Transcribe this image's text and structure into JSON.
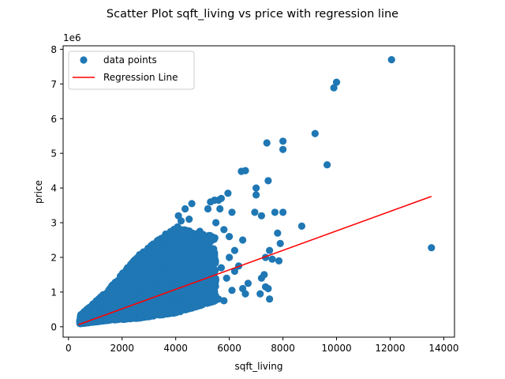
{
  "chart_data": {
    "type": "scatter",
    "title": "Scatter Plot sqft_living vs price with regression line",
    "xlabel": "sqft_living",
    "ylabel": "price",
    "y_offset_text": "1e6",
    "xlim": [
      -200,
      14400
    ],
    "ylim": [
      -0.3,
      8.1
    ],
    "y_scale_multiplier": 1000000,
    "x_ticks": [
      0,
      2000,
      4000,
      6000,
      8000,
      10000,
      12000,
      14000
    ],
    "x_tick_labels": [
      "0",
      "2000",
      "4000",
      "6000",
      "8000",
      "10000",
      "12000",
      "14000"
    ],
    "y_ticks": [
      0,
      1,
      2,
      3,
      4,
      5,
      6,
      7,
      8
    ],
    "y_tick_labels": [
      "0",
      "1",
      "2",
      "3",
      "4",
      "5",
      "6",
      "7",
      "8"
    ],
    "grid": false,
    "legend_position": "top-left",
    "series": [
      {
        "name": "data points",
        "kind": "scatter",
        "color": "#1f77b4",
        "points": [
          [
            12050,
            7.7
          ],
          [
            10000,
            7.05
          ],
          [
            9900,
            6.89
          ],
          [
            9200,
            5.57
          ],
          [
            8000,
            5.35
          ],
          [
            7400,
            5.3
          ],
          [
            8000,
            5.11
          ],
          [
            6600,
            4.5
          ],
          [
            6450,
            4.48
          ],
          [
            9650,
            4.67
          ],
          [
            7450,
            4.21
          ],
          [
            7000,
            4.0
          ],
          [
            7000,
            3.8
          ],
          [
            5950,
            3.85
          ],
          [
            5700,
            3.7
          ],
          [
            5600,
            3.65
          ],
          [
            5450,
            3.65
          ],
          [
            5300,
            3.6
          ],
          [
            5200,
            3.4
          ],
          [
            5650,
            3.4
          ],
          [
            6100,
            3.3
          ],
          [
            6950,
            3.3
          ],
          [
            7700,
            3.3
          ],
          [
            8000,
            3.3
          ],
          [
            7200,
            3.2
          ],
          [
            8700,
            2.9
          ],
          [
            7800,
            2.7
          ],
          [
            7900,
            2.4
          ],
          [
            13540,
            2.28
          ],
          [
            7500,
            2.2
          ],
          [
            7350,
            2.0
          ],
          [
            7600,
            1.95
          ],
          [
            7850,
            1.9
          ],
          [
            7300,
            1.5
          ],
          [
            7200,
            1.4
          ],
          [
            7350,
            1.15
          ],
          [
            7450,
            1.1
          ],
          [
            7150,
            0.95
          ],
          [
            7500,
            0.8
          ],
          [
            6600,
            0.95
          ],
          [
            6500,
            1.1
          ],
          [
            6200,
            1.6
          ],
          [
            6700,
            1.25
          ],
          [
            6350,
            1.75
          ],
          [
            6000,
            2.0
          ],
          [
            6200,
            2.2
          ],
          [
            6500,
            2.5
          ],
          [
            6000,
            2.6
          ],
          [
            5800,
            2.8
          ],
          [
            5500,
            3.0
          ],
          [
            4500,
            3.1
          ],
          [
            4100,
            3.2
          ],
          [
            4600,
            3.55
          ],
          [
            4350,
            3.4
          ],
          [
            4200,
            3.05
          ],
          [
            4900,
            2.75
          ],
          [
            5200,
            2.45
          ],
          [
            5450,
            2.05
          ],
          [
            5700,
            1.7
          ],
          [
            5900,
            1.4
          ],
          [
            6100,
            1.05
          ],
          [
            5800,
            0.75
          ],
          [
            5600,
            0.8
          ],
          [
            5300,
            1.1
          ]
        ],
        "dense_bands": [
          {
            "x_min": 420,
            "x_max": 1400,
            "y_low_at_min": 0.09,
            "y_low_at_max": 0.18,
            "y_high_at_min": 0.32,
            "y_high_at_max": 1.0
          },
          {
            "x_min": 1400,
            "x_max": 2600,
            "y_low_at_min": 0.18,
            "y_low_at_max": 0.25,
            "y_high_at_min": 1.0,
            "y_high_at_max": 2.05
          },
          {
            "x_min": 2600,
            "x_max": 4000,
            "y_low_at_min": 0.25,
            "y_low_at_max": 0.4,
            "y_high_at_min": 2.05,
            "y_high_at_max": 2.9
          },
          {
            "x_min": 4000,
            "x_max": 5500,
            "y_low_at_min": 0.4,
            "y_low_at_max": 0.75,
            "y_high_at_min": 2.9,
            "y_high_at_max": 2.6
          }
        ]
      },
      {
        "name": "Regression Line",
        "kind": "line",
        "color": "#ff0000",
        "points": [
          [
            370,
            0.06
          ],
          [
            13540,
            3.76
          ]
        ]
      }
    ]
  }
}
